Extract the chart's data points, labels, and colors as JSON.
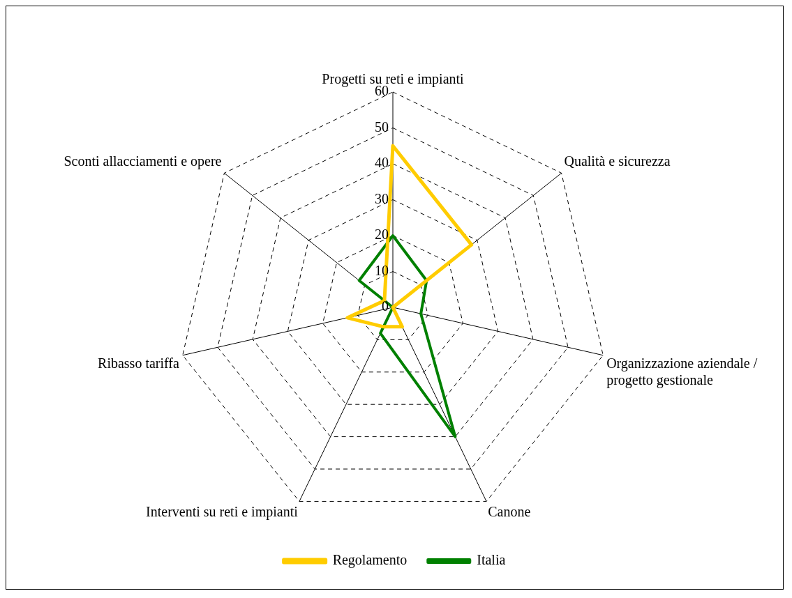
{
  "chart_data": {
    "type": "radar",
    "categories": [
      "Progetti su reti e impianti",
      "Qualità e sicurezza",
      "Organizzazione aziendale / progetto gestionale",
      "Canone",
      "Interventi su reti e impianti",
      "Ribasso tariffa",
      "Sconti allacciamenti e opere"
    ],
    "series": [
      {
        "name": "Regolamento",
        "color": "#ffcc00",
        "values": [
          45,
          28,
          0,
          6,
          6,
          13,
          3
        ]
      },
      {
        "name": "Italia",
        "color": "#008000",
        "values": [
          20,
          12,
          8,
          40,
          8,
          0,
          12
        ]
      }
    ],
    "ylim": [
      0,
      60
    ],
    "yticks": [
      0,
      10,
      20,
      30,
      40,
      50,
      60
    ],
    "grid": true,
    "legend": "bottom",
    "marker": "none",
    "line_style": "solid"
  }
}
